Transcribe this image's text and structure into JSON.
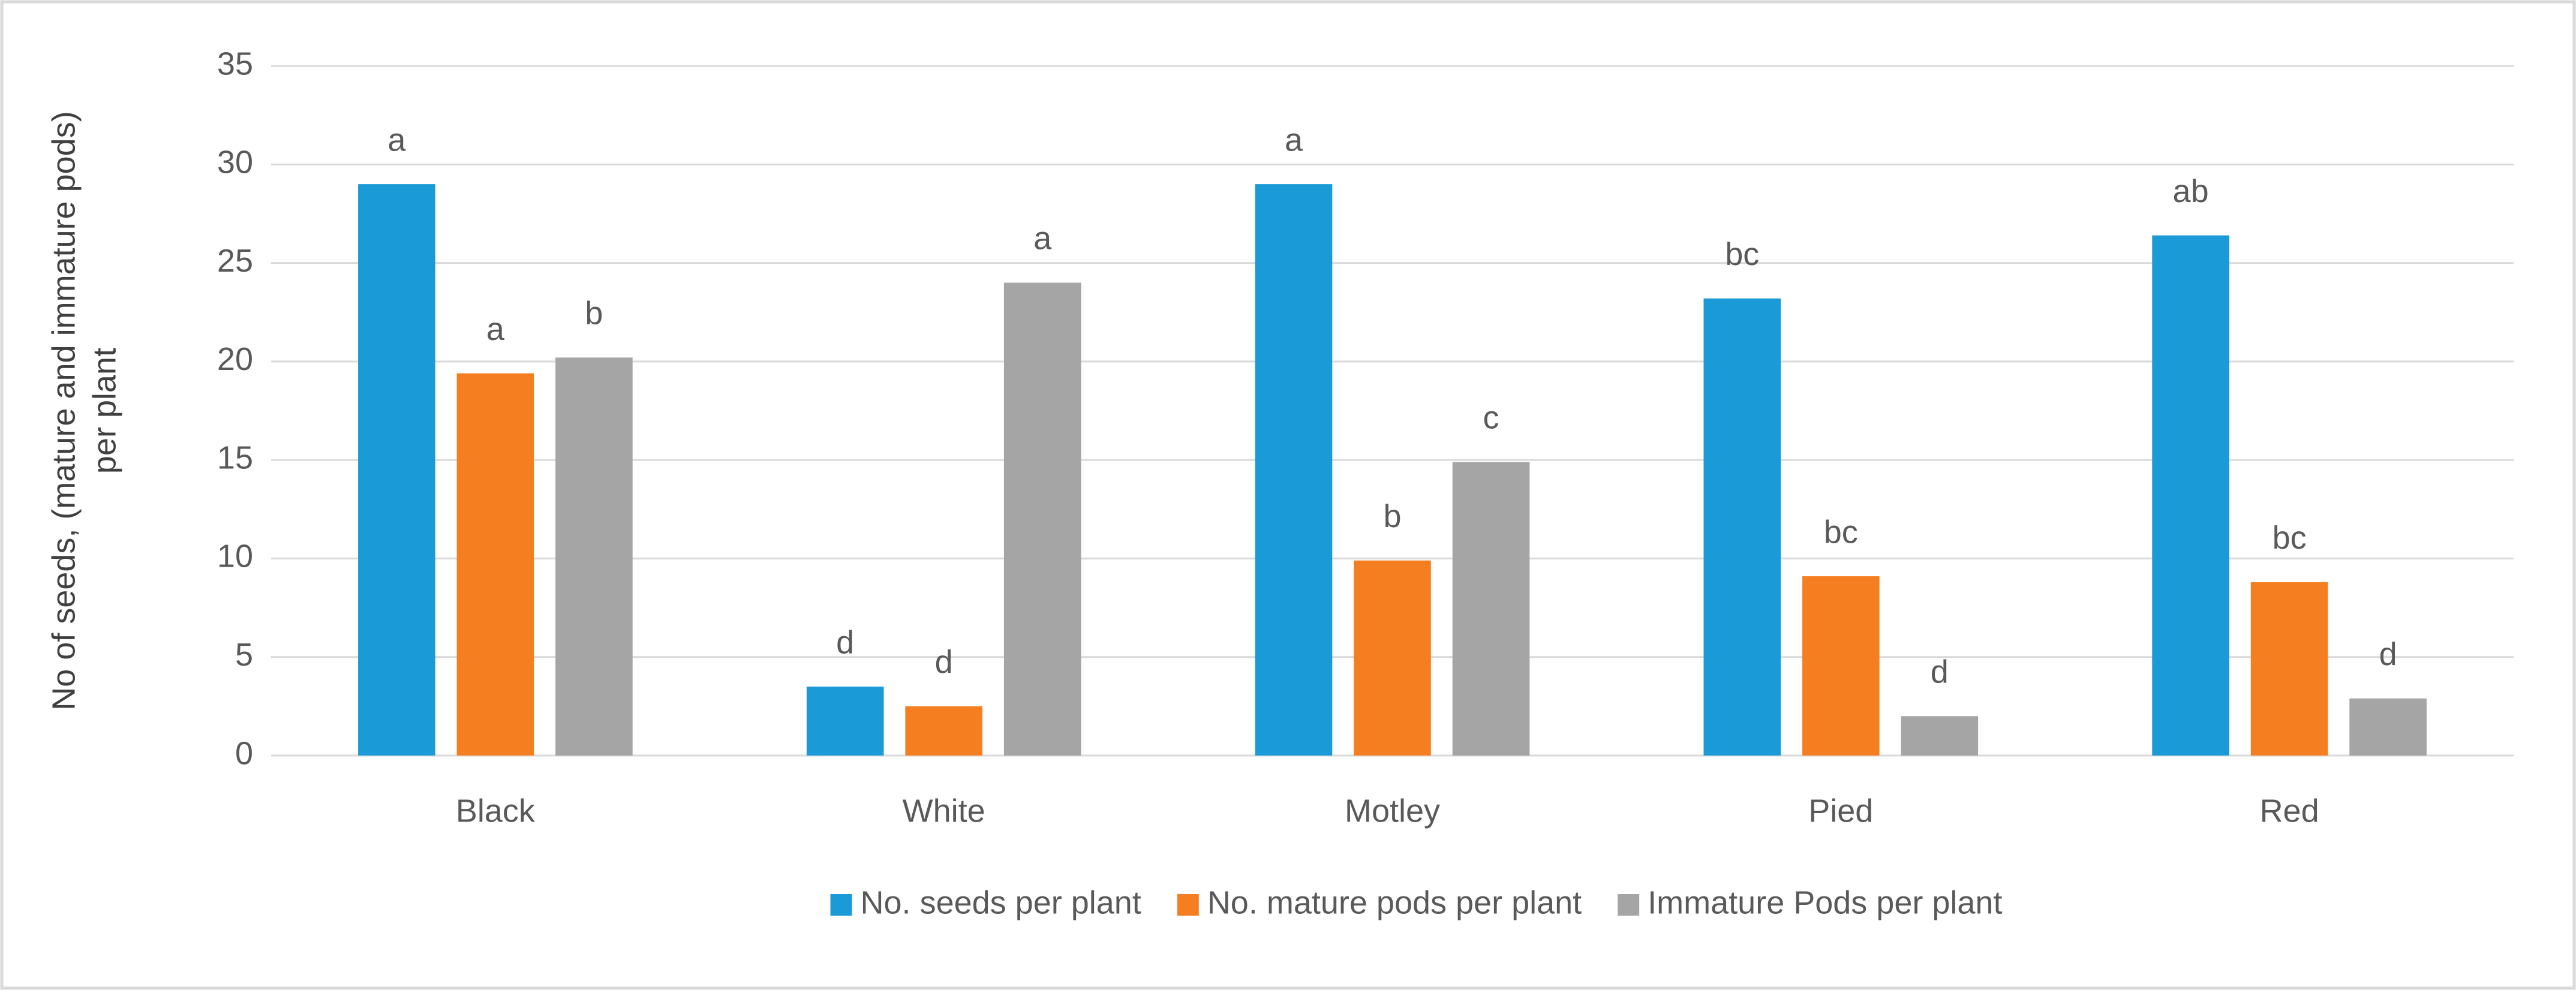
{
  "chart_data": {
    "type": "bar",
    "y_label": [
      "No of seeds, (mature and immature pods)",
      "per plant"
    ],
    "categories": [
      "Black",
      "White",
      "Motley",
      "Pied",
      "Red"
    ],
    "series": [
      {
        "name": "No. seeds per plant",
        "color": "#1a9ad6",
        "values": [
          29,
          3.5,
          29,
          23.2,
          26.4
        ],
        "labels": [
          "a",
          "d",
          "a",
          "bc",
          "ab"
        ]
      },
      {
        "name": "No. mature pods per plant",
        "color": "#f57f20",
        "values": [
          19.4,
          2.5,
          9.9,
          9.1,
          8.8
        ],
        "labels": [
          "a",
          "d",
          "b",
          "bc",
          "bc"
        ]
      },
      {
        "name": "Immature Pods per plant",
        "color": "#a5a5a5",
        "values": [
          20.2,
          24,
          14.9,
          2,
          2.9
        ],
        "labels": [
          "b",
          "a",
          "c",
          "d",
          "d"
        ]
      }
    ],
    "ylim": [
      0,
      35
    ],
    "yticks": [
      0,
      5,
      10,
      15,
      20,
      25,
      30,
      35
    ],
    "grid": true,
    "legend": "bottom"
  }
}
